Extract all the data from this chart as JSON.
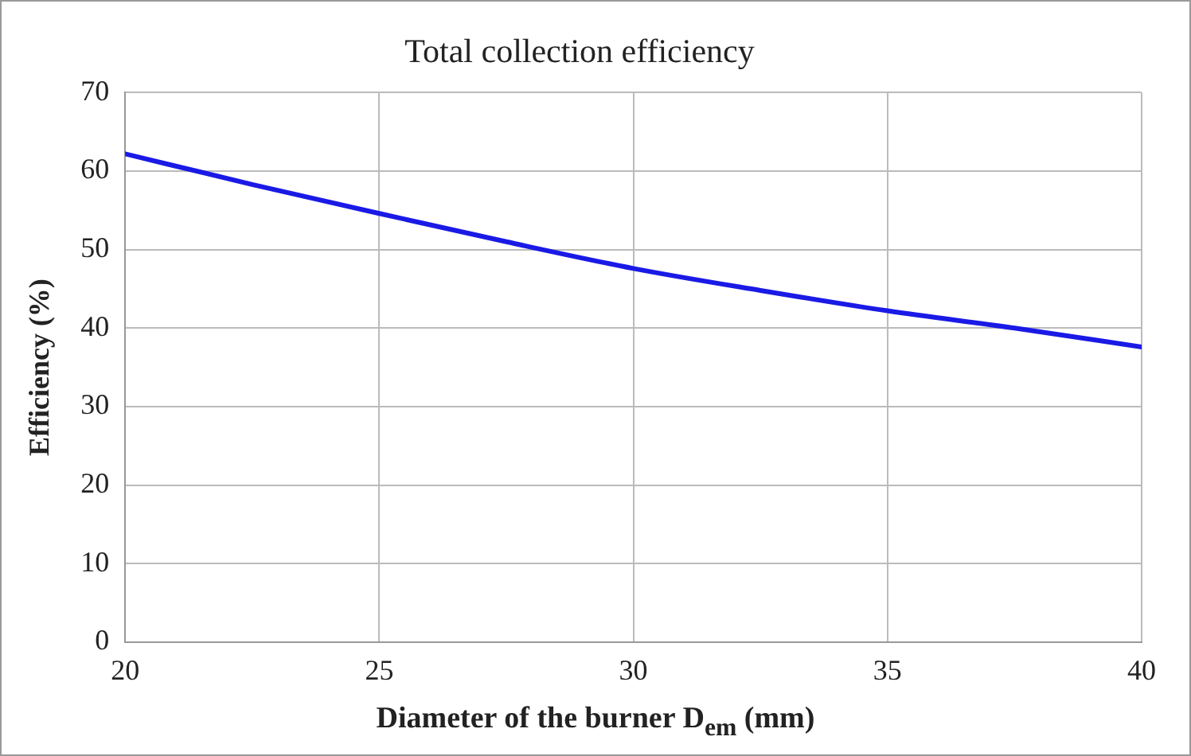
{
  "chart_data": {
    "type": "line",
    "title": "Total collection efficiency",
    "xlabel": "Diameter of the burner D$_{em}$ (mm)",
    "ylabel": "Efficiency (%)",
    "x": [
      20,
      22.5,
      25,
      27.5,
      30,
      32.5,
      35,
      37.5,
      40
    ],
    "series": [
      {
        "color": "#1a1ae6",
        "values": [
          62.2,
          58.3,
          54.6,
          51,
          47.6,
          44.8,
          42.2,
          40,
          37.6
        ]
      }
    ],
    "xlim": [
      20,
      40
    ],
    "xticks": [
      20,
      25,
      30,
      35,
      40
    ],
    "ylim": [
      0,
      70
    ],
    "yticks": [
      0,
      10,
      20,
      30,
      40,
      50,
      60,
      70
    ],
    "grid": true,
    "legend": false,
    "marker": "none",
    "line_style": "solid"
  }
}
